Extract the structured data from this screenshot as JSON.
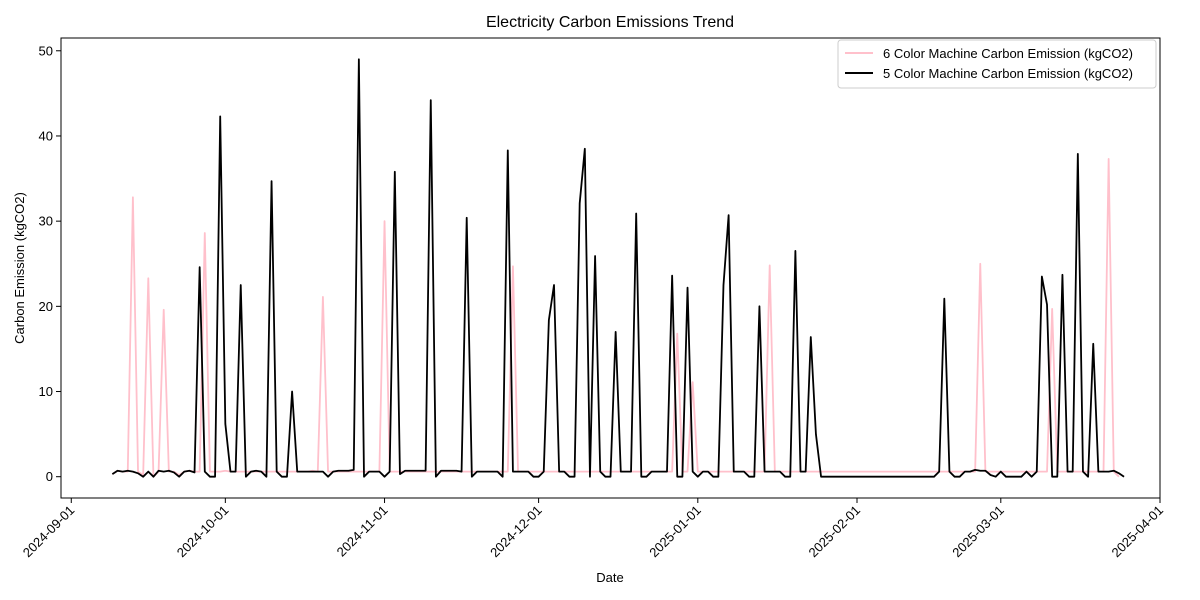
{
  "chart_data": {
    "type": "line",
    "title": "Electricity Carbon Emissions Trend",
    "xlabel": "Date",
    "ylabel": "Carbon Emission (kgCO2)",
    "xlim": [
      "2024-08-30",
      "2025-04-01"
    ],
    "ylim": [
      -2.5,
      51.5
    ],
    "y_ticks": [
      0,
      10,
      20,
      30,
      40,
      50
    ],
    "x_ticks": [
      "2024-09-01",
      "2024-10-01",
      "2024-11-01",
      "2024-12-01",
      "2025-01-01",
      "2025-02-01",
      "2025-03-01",
      "2025-04-01"
    ],
    "grid": false,
    "legend_position": "top-right",
    "series": [
      {
        "name": "6 Color Machine Carbon Emission (kgCO2)",
        "color": "#ffc0cb",
        "points": [
          [
            "2024-09-09",
            0.3
          ],
          [
            "2024-09-10",
            0.7
          ],
          [
            "2024-09-11",
            0.6
          ],
          [
            "2024-09-12",
            0.6
          ],
          [
            "2024-09-13",
            32.8
          ],
          [
            "2024-09-14",
            0.6
          ],
          [
            "2024-09-15",
            0.2
          ],
          [
            "2024-09-16",
            23.3
          ],
          [
            "2024-09-17",
            0.0
          ],
          [
            "2024-09-18",
            0.6
          ],
          [
            "2024-09-19",
            19.6
          ],
          [
            "2024-09-20",
            0.6
          ],
          [
            "2024-09-21",
            0.6
          ],
          [
            "2024-09-22",
            0.2
          ],
          [
            "2024-09-23",
            0.6
          ],
          [
            "2024-09-24",
            0.7
          ],
          [
            "2024-09-25",
            0.6
          ],
          [
            "2024-09-26",
            0.6
          ],
          [
            "2024-09-27",
            28.6
          ],
          [
            "2024-09-28",
            0.6
          ],
          [
            "2024-09-29",
            0.6
          ],
          [
            "2024-09-30",
            0.6
          ],
          [
            "2024-10-01",
            0.7
          ],
          [
            "2024-10-02",
            0.6
          ],
          [
            "2024-10-03",
            0.6
          ],
          [
            "2024-10-04",
            0.6
          ],
          [
            "2024-10-05",
            0.6
          ],
          [
            "2024-10-06",
            0.6
          ],
          [
            "2024-10-07",
            0.6
          ],
          [
            "2024-10-08",
            0.6
          ],
          [
            "2024-10-09",
            0.6
          ],
          [
            "2024-10-10",
            0.6
          ],
          [
            "2024-10-11",
            0.6
          ],
          [
            "2024-10-12",
            0.6
          ],
          [
            "2024-10-13",
            0.6
          ],
          [
            "2024-10-14",
            0.6
          ],
          [
            "2024-10-15",
            0.6
          ],
          [
            "2024-10-16",
            0.6
          ],
          [
            "2024-10-17",
            0.6
          ],
          [
            "2024-10-18",
            0.7
          ],
          [
            "2024-10-19",
            0.6
          ],
          [
            "2024-10-20",
            21.1
          ],
          [
            "2024-10-21",
            0.6
          ],
          [
            "2024-10-22",
            0.6
          ],
          [
            "2024-10-23",
            0.6
          ],
          [
            "2024-10-24",
            0.6
          ],
          [
            "2024-10-25",
            0.6
          ],
          [
            "2024-10-26",
            0.6
          ],
          [
            "2024-10-27",
            0.6
          ],
          [
            "2024-10-28",
            0.6
          ],
          [
            "2024-10-29",
            0.6
          ],
          [
            "2024-10-30",
            0.6
          ],
          [
            "2024-10-31",
            0.6
          ],
          [
            "2024-11-01",
            30.0
          ],
          [
            "2024-11-02",
            0.6
          ],
          [
            "2024-11-03",
            0.6
          ],
          [
            "2024-11-04",
            0.6
          ],
          [
            "2024-11-25",
            0.6
          ],
          [
            "2024-11-26",
            24.7
          ],
          [
            "2024-11-27",
            0.6
          ],
          [
            "2024-11-28",
            0.6
          ],
          [
            "2024-12-27",
            0.6
          ],
          [
            "2024-12-28",
            16.8
          ],
          [
            "2024-12-29",
            0.6
          ],
          [
            "2024-12-30",
            0.6
          ],
          [
            "2024-12-31",
            11.1
          ],
          [
            "2025-01-01",
            0.6
          ],
          [
            "2025-01-14",
            0.6
          ],
          [
            "2025-01-15",
            24.8
          ],
          [
            "2025-01-16",
            0.6
          ],
          [
            "2025-02-24",
            0.6
          ],
          [
            "2025-02-25",
            25.0
          ],
          [
            "2025-02-26",
            0.6
          ],
          [
            "2025-02-27",
            0.6
          ],
          [
            "2025-02-28",
            0.6
          ],
          [
            "2025-03-01",
            0.6
          ],
          [
            "2025-03-02",
            0.6
          ],
          [
            "2025-03-03",
            0.6
          ],
          [
            "2025-03-04",
            0.6
          ],
          [
            "2025-03-05",
            0.6
          ],
          [
            "2025-03-06",
            0.6
          ],
          [
            "2025-03-07",
            0.6
          ],
          [
            "2025-03-08",
            0.6
          ],
          [
            "2025-03-09",
            0.6
          ],
          [
            "2025-03-10",
            0.6
          ],
          [
            "2025-03-11",
            19.7
          ],
          [
            "2025-03-12",
            0.6
          ],
          [
            "2025-03-13",
            0.6
          ],
          [
            "2025-03-14",
            0.6
          ],
          [
            "2025-03-15",
            0.6
          ],
          [
            "2025-03-16",
            0.6
          ],
          [
            "2025-03-17",
            0.6
          ],
          [
            "2025-03-18",
            0.6
          ],
          [
            "2025-03-19",
            0.6
          ],
          [
            "2025-03-20",
            0.6
          ],
          [
            "2025-03-21",
            0.6
          ],
          [
            "2025-03-22",
            37.3
          ],
          [
            "2025-03-23",
            0.6
          ],
          [
            "2025-03-24",
            0.0
          ]
        ]
      },
      {
        "name": "5 Color Machine Carbon Emission (kgCO2)",
        "color": "#000000",
        "points": [
          [
            "2024-09-09",
            0.3
          ],
          [
            "2024-09-10",
            0.7
          ],
          [
            "2024-09-11",
            0.6
          ],
          [
            "2024-09-12",
            0.7
          ],
          [
            "2024-09-13",
            0.6
          ],
          [
            "2024-09-14",
            0.4
          ],
          [
            "2024-09-15",
            0.0
          ],
          [
            "2024-09-16",
            0.6
          ],
          [
            "2024-09-17",
            0.0
          ],
          [
            "2024-09-18",
            0.7
          ],
          [
            "2024-09-19",
            0.6
          ],
          [
            "2024-09-20",
            0.7
          ],
          [
            "2024-09-21",
            0.5
          ],
          [
            "2024-09-22",
            0.0
          ],
          [
            "2024-09-23",
            0.6
          ],
          [
            "2024-09-24",
            0.7
          ],
          [
            "2024-09-25",
            0.5
          ],
          [
            "2024-09-26",
            24.6
          ],
          [
            "2024-09-27",
            0.6
          ],
          [
            "2024-09-28",
            0.0
          ],
          [
            "2024-09-29",
            0.0
          ],
          [
            "2024-09-30",
            42.3
          ],
          [
            "2024-10-01",
            6.2
          ],
          [
            "2024-10-02",
            0.6
          ],
          [
            "2024-10-03",
            0.6
          ],
          [
            "2024-10-04",
            22.5
          ],
          [
            "2024-10-05",
            0.0
          ],
          [
            "2024-10-06",
            0.6
          ],
          [
            "2024-10-07",
            0.7
          ],
          [
            "2024-10-08",
            0.6
          ],
          [
            "2024-10-09",
            0.0
          ],
          [
            "2024-10-10",
            34.7
          ],
          [
            "2024-10-11",
            0.6
          ],
          [
            "2024-10-12",
            0.0
          ],
          [
            "2024-10-13",
            0.0
          ],
          [
            "2024-10-14",
            10.0
          ],
          [
            "2024-10-15",
            0.6
          ],
          [
            "2024-10-16",
            0.6
          ],
          [
            "2024-10-17",
            0.6
          ],
          [
            "2024-10-18",
            0.6
          ],
          [
            "2024-10-19",
            0.6
          ],
          [
            "2024-10-20",
            0.6
          ],
          [
            "2024-10-21",
            0.0
          ],
          [
            "2024-10-22",
            0.6
          ],
          [
            "2024-10-23",
            0.7
          ],
          [
            "2024-10-24",
            0.7
          ],
          [
            "2024-10-25",
            0.7
          ],
          [
            "2024-10-26",
            0.8
          ],
          [
            "2024-10-27",
            49.0
          ],
          [
            "2024-10-28",
            0.0
          ],
          [
            "2024-10-29",
            0.6
          ],
          [
            "2024-10-30",
            0.6
          ],
          [
            "2024-10-31",
            0.6
          ],
          [
            "2024-11-01",
            0.0
          ],
          [
            "2024-11-02",
            0.6
          ],
          [
            "2024-11-03",
            35.8
          ],
          [
            "2024-11-04",
            0.3
          ],
          [
            "2024-11-05",
            0.7
          ],
          [
            "2024-11-06",
            0.7
          ],
          [
            "2024-11-07",
            0.7
          ],
          [
            "2024-11-08",
            0.7
          ],
          [
            "2024-11-09",
            0.7
          ],
          [
            "2024-11-10",
            44.2
          ],
          [
            "2024-11-11",
            0.0
          ],
          [
            "2024-11-12",
            0.7
          ],
          [
            "2024-11-13",
            0.7
          ],
          [
            "2024-11-14",
            0.7
          ],
          [
            "2024-11-15",
            0.7
          ],
          [
            "2024-11-16",
            0.6
          ],
          [
            "2024-11-17",
            30.4
          ],
          [
            "2024-11-18",
            0.0
          ],
          [
            "2024-11-19",
            0.6
          ],
          [
            "2024-11-20",
            0.6
          ],
          [
            "2024-11-21",
            0.6
          ],
          [
            "2024-11-22",
            0.6
          ],
          [
            "2024-11-23",
            0.6
          ],
          [
            "2024-11-24",
            0.0
          ],
          [
            "2024-11-25",
            38.3
          ],
          [
            "2024-11-26",
            0.6
          ],
          [
            "2024-11-27",
            0.6
          ],
          [
            "2024-11-28",
            0.6
          ],
          [
            "2024-11-29",
            0.6
          ],
          [
            "2024-11-30",
            0.0
          ],
          [
            "2024-12-01",
            0.0
          ],
          [
            "2024-12-02",
            0.6
          ],
          [
            "2024-12-03",
            18.4
          ],
          [
            "2024-12-04",
            22.5
          ],
          [
            "2024-12-05",
            0.6
          ],
          [
            "2024-12-06",
            0.6
          ],
          [
            "2024-12-07",
            0.0
          ],
          [
            "2024-12-08",
            0.0
          ],
          [
            "2024-12-09",
            32.1
          ],
          [
            "2024-12-10",
            38.5
          ],
          [
            "2024-12-11",
            0.0
          ],
          [
            "2024-12-12",
            25.9
          ],
          [
            "2024-12-13",
            0.6
          ],
          [
            "2024-12-14",
            0.0
          ],
          [
            "2024-12-15",
            0.0
          ],
          [
            "2024-12-16",
            17.0
          ],
          [
            "2024-12-17",
            0.6
          ],
          [
            "2024-12-18",
            0.6
          ],
          [
            "2024-12-19",
            0.6
          ],
          [
            "2024-12-20",
            30.9
          ],
          [
            "2024-12-21",
            0.0
          ],
          [
            "2024-12-22",
            0.0
          ],
          [
            "2024-12-23",
            0.6
          ],
          [
            "2024-12-24",
            0.6
          ],
          [
            "2024-12-25",
            0.6
          ],
          [
            "2024-12-26",
            0.6
          ],
          [
            "2024-12-27",
            23.6
          ],
          [
            "2024-12-28",
            0.0
          ],
          [
            "2024-12-29",
            0.0
          ],
          [
            "2024-12-30",
            22.2
          ],
          [
            "2024-12-31",
            0.6
          ],
          [
            "2025-01-01",
            0.0
          ],
          [
            "2025-01-02",
            0.6
          ],
          [
            "2025-01-03",
            0.6
          ],
          [
            "2025-01-04",
            0.0
          ],
          [
            "2025-01-05",
            0.0
          ],
          [
            "2025-01-06",
            22.5
          ],
          [
            "2025-01-07",
            30.7
          ],
          [
            "2025-01-08",
            0.6
          ],
          [
            "2025-01-09",
            0.6
          ],
          [
            "2025-01-10",
            0.6
          ],
          [
            "2025-01-11",
            0.0
          ],
          [
            "2025-01-12",
            0.0
          ],
          [
            "2025-01-13",
            20.0
          ],
          [
            "2025-01-14",
            0.6
          ],
          [
            "2025-01-15",
            0.6
          ],
          [
            "2025-01-16",
            0.6
          ],
          [
            "2025-01-17",
            0.6
          ],
          [
            "2025-01-18",
            0.0
          ],
          [
            "2025-01-19",
            0.0
          ],
          [
            "2025-01-20",
            26.5
          ],
          [
            "2025-01-21",
            0.6
          ],
          [
            "2025-01-22",
            0.6
          ],
          [
            "2025-01-23",
            16.4
          ],
          [
            "2025-01-24",
            5.0
          ],
          [
            "2025-01-25",
            0.0
          ],
          [
            "2025-01-26",
            0.0
          ],
          [
            "2025-02-16",
            0.0
          ],
          [
            "2025-02-17",
            0.6
          ],
          [
            "2025-02-18",
            20.9
          ],
          [
            "2025-02-19",
            0.6
          ],
          [
            "2025-02-20",
            0.0
          ],
          [
            "2025-02-21",
            0.0
          ],
          [
            "2025-02-22",
            0.6
          ],
          [
            "2025-02-23",
            0.6
          ],
          [
            "2025-02-24",
            0.8
          ],
          [
            "2025-02-25",
            0.7
          ],
          [
            "2025-02-26",
            0.7
          ],
          [
            "2025-02-27",
            0.2
          ],
          [
            "2025-02-28",
            0.0
          ],
          [
            "2025-03-01",
            0.6
          ],
          [
            "2025-03-02",
            0.0
          ],
          [
            "2025-03-03",
            0.0
          ],
          [
            "2025-03-04",
            0.0
          ],
          [
            "2025-03-05",
            0.0
          ],
          [
            "2025-03-06",
            0.6
          ],
          [
            "2025-03-07",
            0.0
          ],
          [
            "2025-03-08",
            0.6
          ],
          [
            "2025-03-09",
            23.5
          ],
          [
            "2025-03-10",
            20.2
          ],
          [
            "2025-03-11",
            0.0
          ],
          [
            "2025-03-12",
            0.0
          ],
          [
            "2025-03-13",
            23.7
          ],
          [
            "2025-03-14",
            0.6
          ],
          [
            "2025-03-15",
            0.6
          ],
          [
            "2025-03-16",
            37.9
          ],
          [
            "2025-03-17",
            0.6
          ],
          [
            "2025-03-18",
            0.0
          ],
          [
            "2025-03-19",
            15.6
          ],
          [
            "2025-03-20",
            0.6
          ],
          [
            "2025-03-21",
            0.6
          ],
          [
            "2025-03-22",
            0.6
          ],
          [
            "2025-03-23",
            0.7
          ],
          [
            "2025-03-24",
            0.4
          ],
          [
            "2025-03-25",
            0.0
          ]
        ]
      }
    ]
  }
}
